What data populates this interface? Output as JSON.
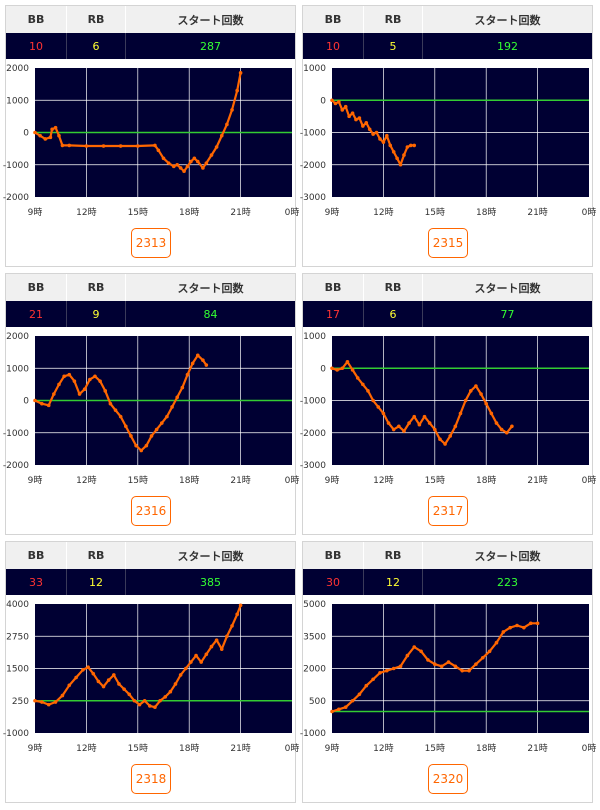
{
  "columns": {
    "bb": "BB",
    "rb": "RB",
    "start": "スタート回数"
  },
  "colors": {
    "background": "#000033",
    "grid": "#ffffff",
    "zero_line": "#33cc33",
    "series": "#ff6600",
    "bb": "#ff3333",
    "rb": "#ffff33",
    "start": "#33ff33"
  },
  "chart_data": [
    {
      "type": "line",
      "machine": "2313",
      "bb": "10",
      "rb": "6",
      "start": "287",
      "x_ticks": [
        "9時",
        "12時",
        "15時",
        "18時",
        "21時",
        "0時"
      ],
      "xlim": [
        9,
        24
      ],
      "ylim": [
        -2000,
        2000
      ],
      "y_ticks": [
        2000,
        1000,
        0,
        -1000,
        -2000
      ],
      "baseline": 0,
      "x": [
        9.0,
        9.3,
        9.6,
        9.9,
        10.0,
        10.2,
        10.4,
        10.6,
        11.0,
        12.0,
        13.0,
        14.0,
        15.0,
        16.0,
        16.2,
        16.5,
        16.8,
        17.1,
        17.3,
        17.5,
        17.7,
        17.9,
        18.1,
        18.3,
        18.5,
        18.8,
        19.0,
        19.3,
        19.6,
        19.9,
        20.2,
        20.5,
        20.8,
        21.0
      ],
      "y": [
        0,
        -100,
        -200,
        -150,
        100,
        150,
        -100,
        -400,
        -400,
        -420,
        -420,
        -420,
        -420,
        -400,
        -550,
        -800,
        -950,
        -1050,
        -1000,
        -1100,
        -1200,
        -1050,
        -900,
        -800,
        -900,
        -1100,
        -950,
        -700,
        -450,
        -100,
        250,
        700,
        1300,
        1850
      ]
    },
    {
      "type": "line",
      "machine": "2315",
      "bb": "10",
      "rb": "5",
      "start": "192",
      "x_ticks": [
        "9時",
        "12時",
        "15時",
        "18時",
        "21時",
        "0時"
      ],
      "xlim": [
        9,
        24
      ],
      "ylim": [
        -3000,
        1000
      ],
      "y_ticks": [
        1000,
        0,
        -1000,
        -2000,
        -3000
      ],
      "baseline": 0,
      "x": [
        9.0,
        9.2,
        9.4,
        9.6,
        9.8,
        10.0,
        10.2,
        10.4,
        10.6,
        10.8,
        11.0,
        11.2,
        11.4,
        11.6,
        11.8,
        12.0,
        12.2,
        12.4,
        12.6,
        12.8,
        13.0,
        13.2,
        13.4,
        13.6,
        13.8
      ],
      "y": [
        0,
        -100,
        -50,
        -300,
        -200,
        -500,
        -400,
        -600,
        -550,
        -800,
        -700,
        -900,
        -1050,
        -1000,
        -1200,
        -1300,
        -1100,
        -1400,
        -1600,
        -1800,
        -2000,
        -1700,
        -1450,
        -1400,
        -1400
      ]
    },
    {
      "type": "line",
      "machine": "2316",
      "bb": "21",
      "rb": "9",
      "start": "84",
      "x_ticks": [
        "9時",
        "12時",
        "15時",
        "18時",
        "21時",
        "0時"
      ],
      "xlim": [
        9,
        24
      ],
      "ylim": [
        -2000,
        2000
      ],
      "y_ticks": [
        2000,
        1000,
        0,
        -1000,
        -2000
      ],
      "baseline": 0,
      "x": [
        9.0,
        9.4,
        9.8,
        10.1,
        10.4,
        10.7,
        11.0,
        11.3,
        11.6,
        11.9,
        12.2,
        12.5,
        12.8,
        13.1,
        13.4,
        13.7,
        14.0,
        14.3,
        14.6,
        14.9,
        15.2,
        15.5,
        15.8,
        16.1,
        16.4,
        16.7,
        17.0,
        17.3,
        17.6,
        17.9,
        18.2,
        18.5,
        18.8,
        19.0
      ],
      "y": [
        0,
        -100,
        -150,
        200,
        500,
        750,
        800,
        600,
        200,
        350,
        650,
        750,
        600,
        300,
        -100,
        -300,
        -500,
        -800,
        -1100,
        -1400,
        -1550,
        -1400,
        -1100,
        -900,
        -700,
        -500,
        -200,
        100,
        400,
        800,
        1150,
        1400,
        1250,
        1100
      ]
    },
    {
      "type": "line",
      "machine": "2317",
      "bb": "17",
      "rb": "6",
      "start": "77",
      "x_ticks": [
        "9時",
        "12時",
        "15時",
        "18時",
        "21時",
        "0時"
      ],
      "xlim": [
        9,
        24
      ],
      "ylim": [
        -3000,
        1000
      ],
      "y_ticks": [
        1000,
        0,
        -1000,
        -2000,
        -3000
      ],
      "baseline": 0,
      "x": [
        9.0,
        9.3,
        9.6,
        9.9,
        10.2,
        10.5,
        10.8,
        11.1,
        11.4,
        11.7,
        12.0,
        12.3,
        12.6,
        12.9,
        13.2,
        13.5,
        13.8,
        14.1,
        14.4,
        14.7,
        15.0,
        15.3,
        15.6,
        15.9,
        16.2,
        16.5,
        16.8,
        17.1,
        17.4,
        17.7,
        18.0,
        18.3,
        18.6,
        18.9,
        19.2,
        19.5
      ],
      "y": [
        0,
        -50,
        0,
        200,
        -50,
        -300,
        -500,
        -700,
        -1000,
        -1200,
        -1400,
        -1700,
        -1900,
        -1800,
        -1950,
        -1700,
        -1500,
        -1750,
        -1500,
        -1700,
        -1900,
        -2200,
        -2350,
        -2100,
        -1800,
        -1400,
        -1000,
        -700,
        -550,
        -800,
        -1100,
        -1400,
        -1700,
        -1900,
        -2000,
        -1800
      ]
    },
    {
      "type": "line",
      "machine": "2318",
      "bb": "33",
      "rb": "12",
      "start": "385",
      "x_ticks": [
        "9時",
        "12時",
        "15時",
        "18時",
        "21時",
        "0時"
      ],
      "xlim": [
        9,
        24
      ],
      "ylim": [
        -1000,
        4000
      ],
      "y_ticks": [
        4000,
        2750,
        1500,
        250,
        -1000
      ],
      "baseline": 250,
      "x": [
        9.0,
        9.4,
        9.8,
        10.2,
        10.6,
        11.0,
        11.4,
        11.8,
        12.1,
        12.4,
        12.7,
        13.0,
        13.3,
        13.6,
        13.9,
        14.2,
        14.5,
        14.8,
        15.1,
        15.4,
        15.7,
        16.0,
        16.3,
        16.6,
        16.9,
        17.2,
        17.5,
        17.8,
        18.1,
        18.4,
        18.7,
        19.0,
        19.3,
        19.6,
        19.9,
        20.2,
        20.5,
        20.8,
        21.0
      ],
      "y": [
        250,
        200,
        100,
        200,
        450,
        850,
        1150,
        1450,
        1550,
        1300,
        1000,
        800,
        1050,
        1250,
        900,
        700,
        500,
        250,
        100,
        250,
        50,
        0,
        250,
        400,
        600,
        900,
        1250,
        1500,
        1750,
        2000,
        1750,
        2050,
        2350,
        2600,
        2250,
        2750,
        3150,
        3600,
        3950
      ]
    },
    {
      "type": "line",
      "machine": "2320",
      "bb": "30",
      "rb": "12",
      "start": "223",
      "x_ticks": [
        "9時",
        "12時",
        "15時",
        "18時",
        "21時",
        "0時"
      ],
      "xlim": [
        9,
        24
      ],
      "ylim": [
        -1000,
        5000
      ],
      "y_ticks": [
        5000,
        3500,
        2000,
        500,
        -1000
      ],
      "baseline": 0,
      "x": [
        9.0,
        9.4,
        9.8,
        10.2,
        10.6,
        11.0,
        11.4,
        11.8,
        12.2,
        12.6,
        13.0,
        13.4,
        13.8,
        14.2,
        14.6,
        15.0,
        15.4,
        15.8,
        16.2,
        16.6,
        17.0,
        17.4,
        17.8,
        18.2,
        18.6,
        19.0,
        19.4,
        19.8,
        20.2,
        20.6,
        21.0
      ],
      "y": [
        0,
        100,
        200,
        500,
        800,
        1200,
        1500,
        1800,
        1900,
        2000,
        2100,
        2600,
        3000,
        2800,
        2400,
        2200,
        2100,
        2300,
        2100,
        1900,
        1900,
        2200,
        2500,
        2800,
        3200,
        3700,
        3900,
        4000,
        3900,
        4100,
        4100
      ]
    }
  ]
}
